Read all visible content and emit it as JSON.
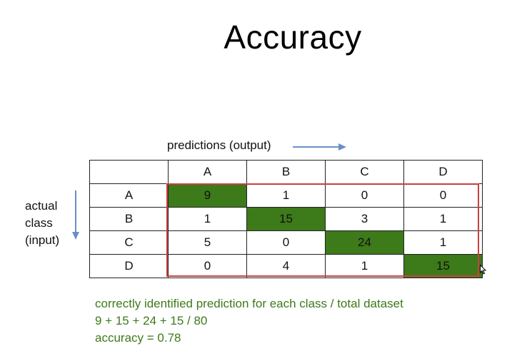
{
  "title": "Accuracy",
  "predictions_label": "predictions (output)",
  "actual_label_lines": [
    "actual",
    "class",
    "(input)"
  ],
  "matrix": {
    "column_headers": [
      "A",
      "B",
      "C",
      "D"
    ],
    "rows": [
      {
        "label": "A",
        "values": [
          "9",
          "1",
          "0",
          "0"
        ]
      },
      {
        "label": "B",
        "values": [
          "1",
          "15",
          "3",
          "1"
        ]
      },
      {
        "label": "C",
        "values": [
          "5",
          "0",
          "24",
          "1"
        ]
      },
      {
        "label": "D",
        "values": [
          "0",
          "4",
          "1",
          "15"
        ]
      }
    ]
  },
  "notes": {
    "line1": "correctly identified prediction for each class / total dataset",
    "line2": "9 + 15 + 24 + 15 /  80",
    "line3": "accuracy = 0.78"
  },
  "colors": {
    "diagonal_fill": "#3d7a1a",
    "highlight_border": "#c94040",
    "arrow": "#6a8fc8",
    "note_text": "#3d7a1a"
  },
  "icons": {
    "right_arrow": "arrow-right-icon",
    "down_arrow": "arrow-down-icon",
    "cursor": "mouse-pointer-icon"
  }
}
